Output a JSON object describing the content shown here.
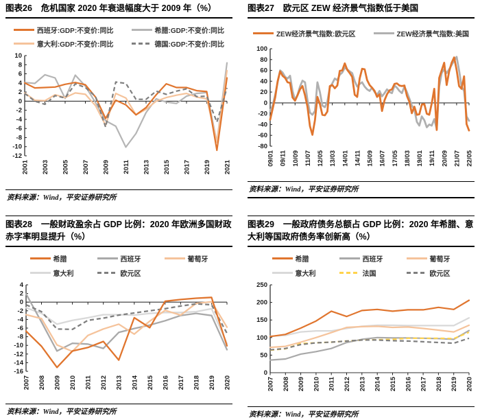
{
  "chart_data": [
    {
      "id": "fig26",
      "tag": "图表26",
      "title": "危机国家 2020 年衰退幅度大于 2009 年（%）",
      "source": "资料来源：Wind，平安证券研究所",
      "type": "line",
      "legend_position": "top",
      "grid": false,
      "x_labels": [
        "2001",
        "2003",
        "2005",
        "2007",
        "2009",
        "2011",
        "2013",
        "2015",
        "2017",
        "2019",
        "2021"
      ],
      "x_label_pos": [
        0,
        2,
        4,
        6,
        8,
        10,
        12,
        14,
        16,
        18,
        20
      ],
      "x_span": 20,
      "ylim": [
        -12,
        10
      ],
      "yticks": [
        10,
        8,
        6,
        4,
        2,
        0,
        -2,
        -4,
        -6,
        -8,
        -10,
        -12
      ],
      "series": [
        {
          "name": "西班牙:GDP:不变价:同比",
          "color": "#E0752E",
          "z": 3,
          "values": [
            4.0,
            2.9,
            3.0,
            3.1,
            3.7,
            4.1,
            3.6,
            0.9,
            -3.8,
            0.2,
            -0.8,
            -3.0,
            -1.4,
            1.4,
            3.8,
            3.0,
            3.0,
            2.3,
            2.1,
            -10.8,
            5.1
          ]
        },
        {
          "name": "希腊:GDP:不变价:同比",
          "color": "#B5B5B5",
          "z": 1,
          "values": [
            4.1,
            3.9,
            5.8,
            5.1,
            0.6,
            5.7,
            3.3,
            -0.3,
            -4.3,
            -5.5,
            -10.1,
            -7.1,
            -2.5,
            0.5,
            -0.2,
            -0.5,
            1.1,
            1.7,
            1.9,
            -9.0,
            8.4
          ]
        },
        {
          "name": "意大利:GDP:不变价:同比",
          "color": "#F5C39B",
          "z": 2,
          "values": [
            1.8,
            0.2,
            0.1,
            1.4,
            0.8,
            1.8,
            1.5,
            -1.0,
            -5.3,
            1.7,
            0.7,
            -3.0,
            -1.8,
            0.0,
            0.8,
            1.3,
            1.7,
            0.9,
            0.5,
            -9.0,
            6.7
          ]
        },
        {
          "name": "德国:GDP:不变价:同比",
          "color": "#7F7F7F",
          "dash": true,
          "z": 4,
          "values": [
            1.7,
            0.0,
            -0.7,
            1.2,
            0.7,
            3.8,
            3.0,
            1.0,
            -5.7,
            4.2,
            3.9,
            0.4,
            0.4,
            2.2,
            1.5,
            2.2,
            2.7,
            1.0,
            1.1,
            -4.6,
            2.9
          ]
        }
      ]
    },
    {
      "id": "fig27",
      "tag": "图表27",
      "title": "欧元区 ZEW 经济景气指数低于美国",
      "source": "资料来源：Wind，平安证券研究所",
      "type": "line",
      "legend_position": "top",
      "grid": false,
      "x_unit": "month (YY/MM)",
      "x_labels": [
        "09/01",
        "09/11",
        "10/09",
        "11/07",
        "12/05",
        "13/03",
        "14/01",
        "14/11",
        "15/09",
        "16/07",
        "17/05",
        "18/03",
        "19/01",
        "19/11",
        "20/09",
        "21/07",
        "22/05"
      ],
      "x_label_pos": [
        0,
        10,
        20,
        30,
        40,
        50,
        60,
        70,
        80,
        90,
        100,
        110,
        120,
        130,
        140,
        150,
        160
      ],
      "x_span": 160,
      "x_step_months": 2,
      "ylim": [
        -80,
        100
      ],
      "yticks": [
        100,
        80,
        60,
        40,
        20,
        0,
        -20,
        -40,
        -60,
        -80
      ],
      "series": [
        {
          "name": "ZEW经济景气指数:欧元区",
          "color": "#E0752E",
          "z": 2,
          "values": [
            -31,
            -11,
            10,
            40,
            58,
            50,
            46,
            38,
            37,
            10,
            4,
            14,
            25,
            31,
            14,
            -7,
            -43,
            -59,
            -32,
            11,
            -2,
            -22,
            -23,
            -16,
            31,
            33,
            27,
            32,
            59,
            60,
            73,
            61,
            55,
            48,
            15,
            11,
            45,
            63,
            62,
            42,
            33,
            28,
            22,
            11,
            16,
            -15,
            5,
            16,
            23,
            25,
            35,
            36,
            32,
            31,
            32,
            13,
            2,
            -19,
            -7,
            -22,
            -21,
            -3,
            -2,
            -20,
            -22,
            -1,
            26,
            -50,
            46,
            60,
            74,
            33,
            58,
            74,
            84,
            61,
            31,
            26,
            49,
            -39,
            -51
          ]
        },
        {
          "name": "ZEW经济景气指数:美国",
          "color": "#B0B0B0",
          "z": 1,
          "values": [
            -15,
            -5,
            15,
            38,
            60,
            56,
            48,
            45,
            50,
            22,
            5,
            15,
            30,
            41,
            38,
            5,
            -18,
            -22,
            -15,
            38,
            20,
            -5,
            -8,
            2,
            28,
            36,
            45,
            42,
            52,
            56,
            65,
            62,
            58,
            55,
            40,
            30,
            35,
            38,
            30,
            25,
            22,
            28,
            20,
            15,
            22,
            12,
            18,
            25,
            20,
            18,
            32,
            28,
            22,
            18,
            30,
            20,
            8,
            -5,
            -12,
            -35,
            -42,
            -25,
            -32,
            -45,
            -40,
            -42,
            -30,
            -48,
            30,
            55,
            62,
            55,
            62,
            70,
            78,
            85,
            60,
            30,
            22,
            -25,
            -33
          ]
        }
      ]
    },
    {
      "id": "fig28",
      "tag": "图表28",
      "title": "一般财政盈余占 GDP 比例：2020 年欧洲多国财政赤字率明显提升（%）",
      "source": "资料来源：Wind，平安证券研究所",
      "type": "line",
      "legend_position": "top",
      "grid": false,
      "x_labels": [
        "2007",
        "2008",
        "2009",
        "2010",
        "2011",
        "2012",
        "2013",
        "2014",
        "2015",
        "2016",
        "2017",
        "2018",
        "2019",
        "2020"
      ],
      "x_label_pos": [
        0,
        1,
        2,
        3,
        4,
        5,
        6,
        7,
        8,
        9,
        10,
        11,
        12,
        13
      ],
      "x_span": 13,
      "ylim": [
        -16,
        4
      ],
      "yticks": [
        4,
        2,
        0,
        -2,
        -4,
        -6,
        -8,
        -10,
        -12,
        -14,
        -16
      ],
      "series": [
        {
          "name": "希腊",
          "color": "#E0752E",
          "z": 5,
          "values": [
            -6.7,
            -10.2,
            -15.1,
            -11.3,
            -10.5,
            -9.1,
            -13.4,
            -3.6,
            -5.9,
            0.2,
            0.6,
            0.9,
            1.1,
            -10.1
          ]
        },
        {
          "name": "西班牙",
          "color": "#A9A9A9",
          "z": 2,
          "values": [
            1.9,
            -4.6,
            -11.3,
            -9.5,
            -9.7,
            -10.7,
            -7.0,
            -6.1,
            -5.3,
            -4.3,
            -3.1,
            -2.6,
            -3.1,
            -11.0
          ]
        },
        {
          "name": "葡萄牙",
          "color": "#F5C39B",
          "z": 3,
          "values": [
            -2.9,
            -3.8,
            -9.9,
            -11.4,
            -7.7,
            -6.2,
            -5.1,
            -7.4,
            -4.4,
            -1.9,
            -3.0,
            -0.3,
            0.1,
            -5.8
          ]
        },
        {
          "name": "意大利",
          "color": "#D9D9D9",
          "z": 1,
          "values": [
            -1.3,
            -2.6,
            -5.1,
            -4.2,
            -3.6,
            -2.9,
            -2.9,
            -3.0,
            -2.6,
            -2.4,
            -2.4,
            -2.2,
            -1.5,
            -9.6
          ]
        },
        {
          "name": "欧元区",
          "color": "#7F7F7F",
          "dash": true,
          "z": 4,
          "values": [
            -0.6,
            -2.2,
            -6.2,
            -6.3,
            -4.2,
            -3.7,
            -3.0,
            -2.5,
            -2.0,
            -1.5,
            -0.9,
            -0.4,
            -0.6,
            -7.2
          ]
        }
      ]
    },
    {
      "id": "fig29",
      "tag": "图表29",
      "title": "一般政府债务总额占 GDP 比例：2020 年希腊、意大利等国政府债务率创新高（%）",
      "source": "资料来源：Wind，平安证券研究所",
      "type": "line",
      "legend_position": "top",
      "grid": false,
      "x_labels": [
        "2007",
        "2008",
        "2009",
        "2010",
        "2011",
        "2012",
        "2013",
        "2014",
        "2015",
        "2016",
        "2017",
        "2018",
        "2019",
        "2020"
      ],
      "x_label_pos": [
        0,
        1,
        2,
        3,
        4,
        5,
        6,
        7,
        8,
        9,
        10,
        11,
        12,
        13
      ],
      "x_span": 13,
      "ylim": [
        0,
        250
      ],
      "yticks": [
        250,
        200,
        150,
        100,
        50,
        0
      ],
      "series": [
        {
          "name": "希腊",
          "color": "#E0752E",
          "z": 6,
          "values": [
            103,
            109,
            127,
            147,
            175,
            160,
            177,
            180,
            175,
            179,
            179,
            186,
            180,
            206
          ]
        },
        {
          "name": "西班牙",
          "color": "#A9A9A9",
          "z": 2,
          "values": [
            36,
            39,
            53,
            60,
            69,
            86,
            95,
            100,
            99,
            99,
            98,
            97,
            95,
            120
          ]
        },
        {
          "name": "葡萄牙",
          "color": "#F5C39B",
          "z": 3,
          "values": [
            72,
            75,
            87,
            100,
            114,
            129,
            131,
            132,
            129,
            130,
            126,
            121,
            116,
            135
          ]
        },
        {
          "name": "意大利",
          "color": "#D9D9D9",
          "z": 1,
          "values": [
            104,
            106,
            116,
            119,
            119,
            126,
            132,
            135,
            135,
            134,
            134,
            134,
            134,
            156
          ]
        },
        {
          "name": "法国",
          "color": "#FFD34D",
          "dash": true,
          "z": 4,
          "values": [
            64,
            68,
            83,
            85,
            87,
            90,
            93,
            94,
            95,
            98,
            98,
            98,
            97,
            115
          ]
        },
        {
          "name": "欧元区",
          "color": "#7F7F7F",
          "dash": true,
          "z": 5,
          "values": [
            65,
            69,
            80,
            85,
            87,
            90,
            93,
            93,
            91,
            90,
            88,
            86,
            84,
            98
          ]
        }
      ]
    }
  ]
}
